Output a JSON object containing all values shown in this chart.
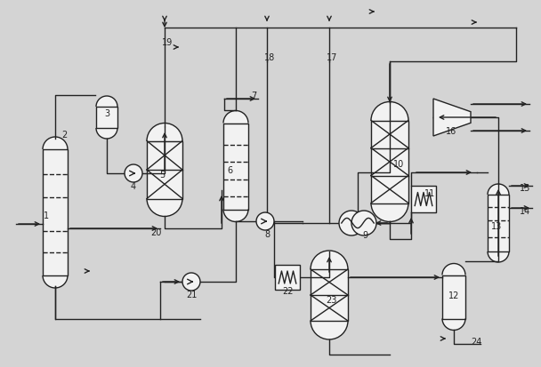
{
  "bg_color": "#d4d4d4",
  "line_color": "#222222",
  "fill_color": "#f2f2f2",
  "figsize": [
    6.08,
    4.14
  ],
  "dpi": 100
}
